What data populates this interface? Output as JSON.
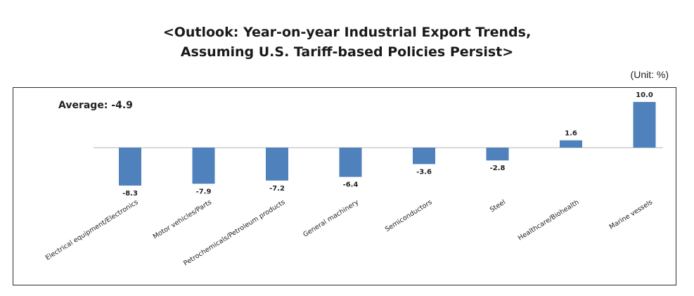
{
  "title_line1": "<Outlook: Year-on-year Industrial Export Trends,",
  "title_line2": "Assuming U.S. Tariff-based Policies Persist>",
  "unit_label": "(Unit: %)",
  "average_label": "Average: -4.9",
  "colors": {
    "bar": "#4f81bd",
    "baseline": "#d9d9d9",
    "frame": "#2b2b2b"
  },
  "chart_data": {
    "type": "bar",
    "title": "<Outlook: Year-on-year Industrial Export Trends, Assuming U.S. Tariff-based Policies Persist>",
    "unit": "(Unit: %)",
    "annotation": "Average: -4.9",
    "categories": [
      "Electrical equipment/Electronics",
      "Motor vehicles/Parts",
      "Petrochemicals/Petroleum products",
      "General machinery",
      "Semiconductors",
      "Steel",
      "Healthcare/Biohealth",
      "Marine vessels"
    ],
    "values": [
      -8.3,
      -7.9,
      -7.2,
      -6.4,
      -3.6,
      -2.8,
      1.6,
      10.0
    ],
    "value_labels": [
      "-8.3",
      "-7.9",
      "-7.2",
      "-6.4",
      "-3.6",
      "-2.8",
      "1.6",
      "10.0"
    ],
    "xlabel": "",
    "ylabel": "",
    "ylim": [
      -10,
      10
    ],
    "grid": false,
    "legend": "none"
  }
}
